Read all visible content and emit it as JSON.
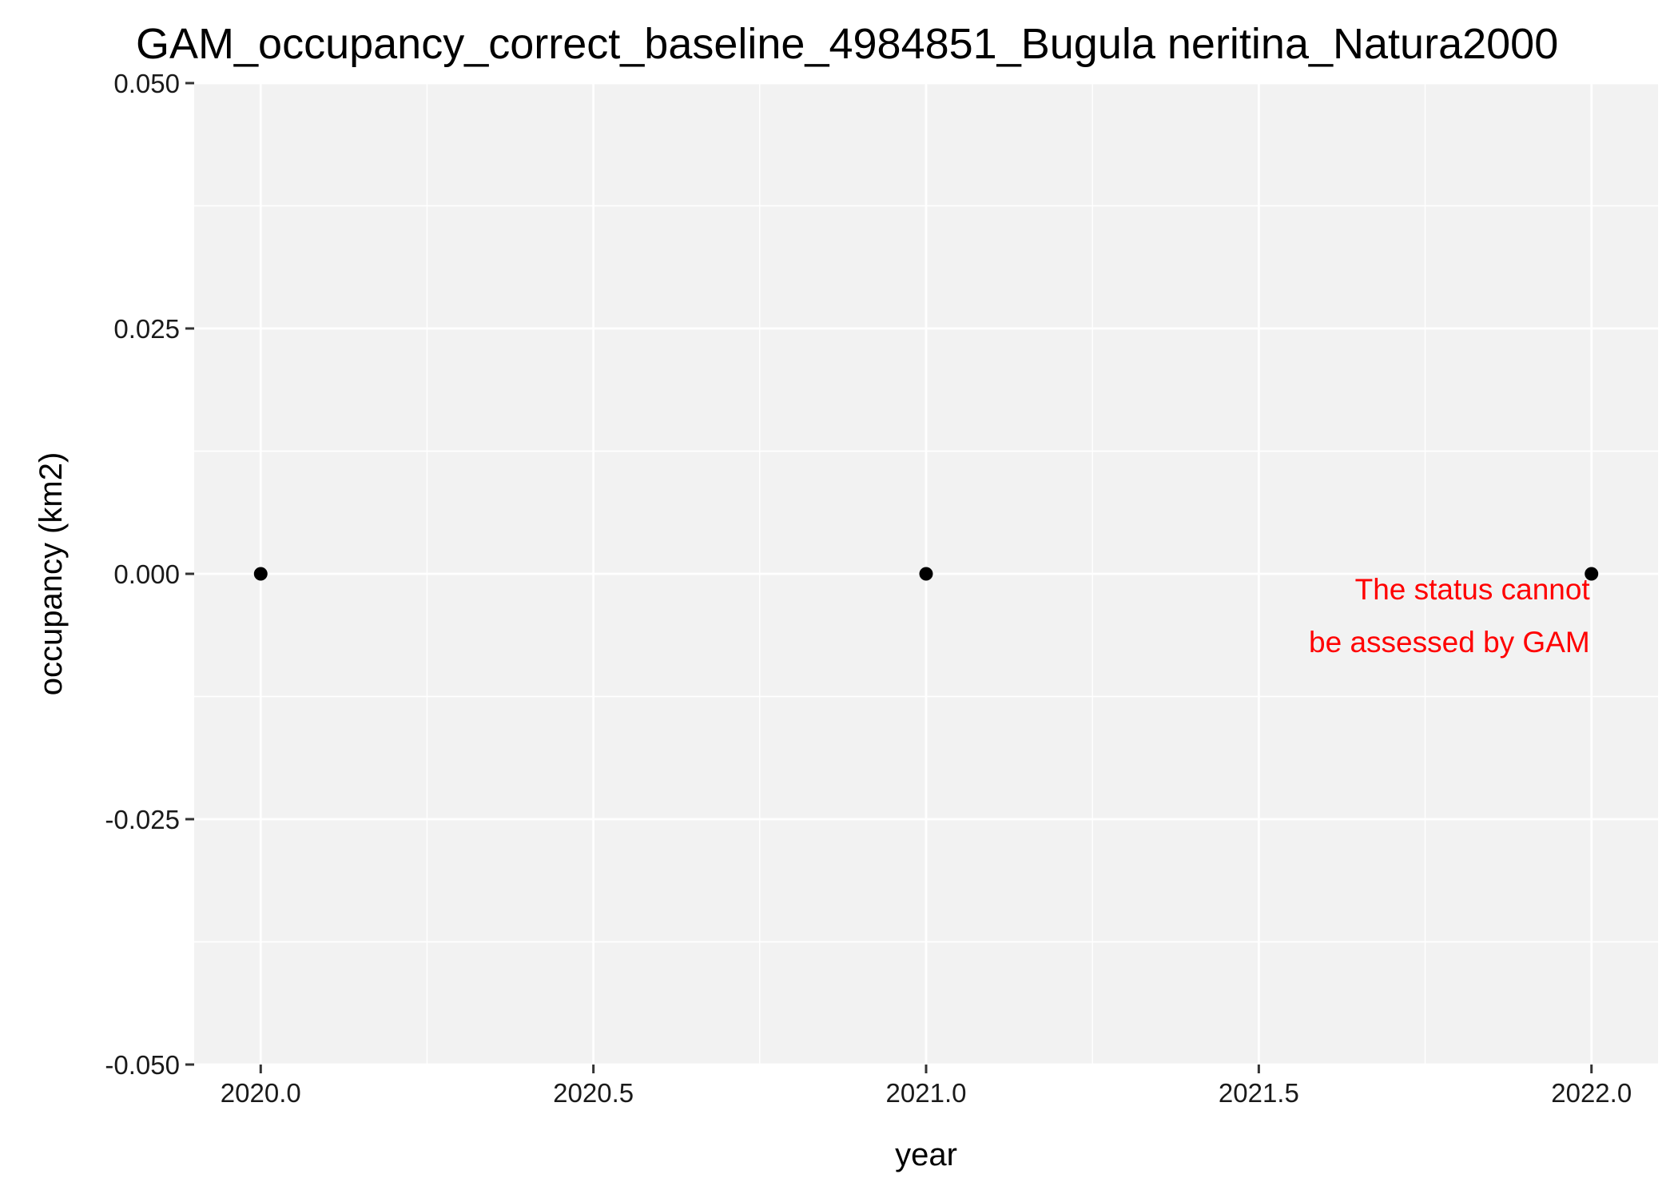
{
  "chart_data": {
    "type": "scatter",
    "title": "GAM_occupancy_correct_baseline_4984851_Bugula neritina_Natura2000",
    "xlabel": "year",
    "ylabel": "occupancy (km2)",
    "xlim": [
      2019.9,
      2022.1
    ],
    "ylim": [
      -0.05,
      0.05
    ],
    "x_ticks": [
      2020.0,
      2020.5,
      2021.0,
      2021.5,
      2022.0
    ],
    "x_tick_labels": [
      "2020.0",
      "2020.5",
      "2021.0",
      "2021.5",
      "2022.0"
    ],
    "y_ticks": [
      -0.05,
      -0.025,
      0.0,
      0.025,
      0.05
    ],
    "y_tick_labels": [
      "-0.050",
      "-0.025",
      "0.000",
      "0.025",
      "0.050"
    ],
    "points": [
      {
        "x": 2020,
        "y": 0
      },
      {
        "x": 2021,
        "y": 0
      },
      {
        "x": 2022,
        "y": 0
      }
    ],
    "annotation": {
      "lines": [
        "The status cannot",
        "be assessed by GAM"
      ],
      "x": 2022,
      "y": 0,
      "color": "#ff0000"
    },
    "grid": true,
    "panel_background": "#f2f2f2",
    "grid_color": "#ffffff",
    "point_color": "#000000",
    "legend": "none"
  }
}
